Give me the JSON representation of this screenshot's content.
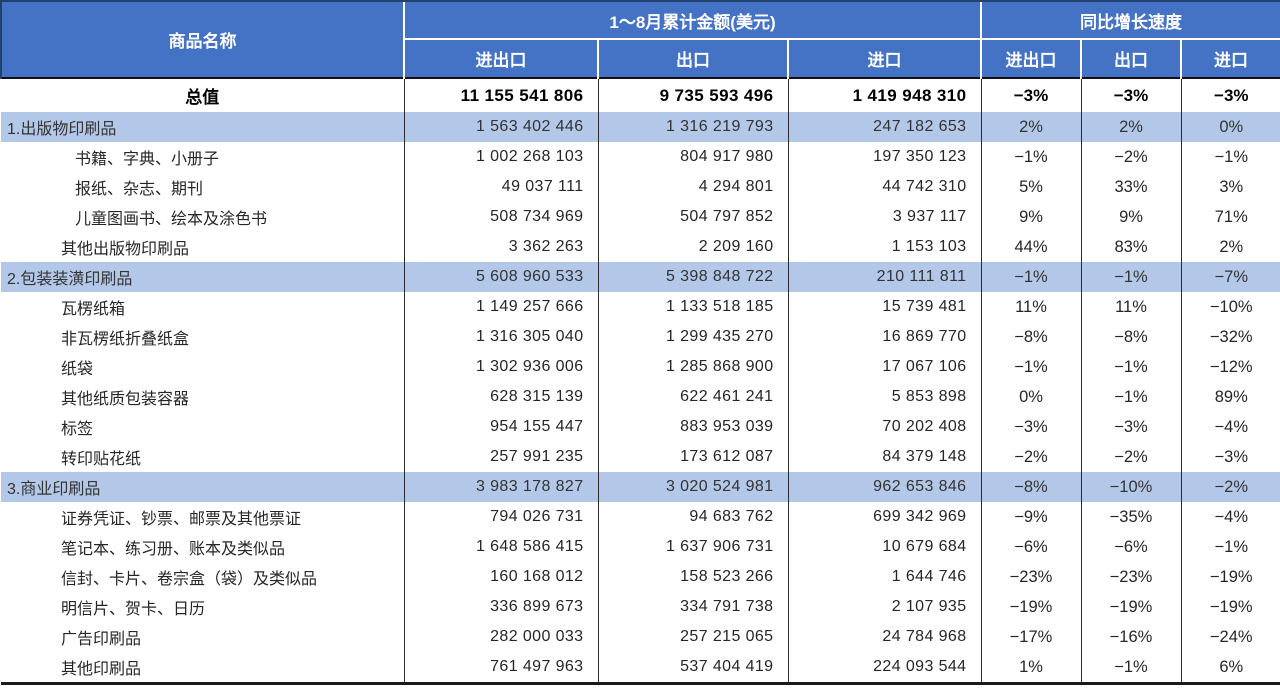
{
  "header": {
    "product_col": "商品名称",
    "amount_group": "1～8月累计金额(美元)",
    "growth_group": "同比增长速度",
    "sub_cols": [
      "进出口",
      "出口",
      "进口",
      "进出口",
      "出口",
      "进口"
    ]
  },
  "colors": {
    "header_bg": "#4472c4",
    "section_band_bg": "#b3c8e8"
  },
  "rows": [
    {
      "name": "总值",
      "level": "total",
      "values": [
        "11 155 541 806",
        "9 735 593 496",
        "1 419 948 310",
        "−3%",
        "−3%",
        "−3%"
      ]
    },
    {
      "name": "1.出版物印刷品",
      "level": "section",
      "values": [
        "1 563 402 446",
        "1 316 219 793",
        "247 182 653",
        "2%",
        "2%",
        "0%"
      ]
    },
    {
      "name": "书籍、字典、小册子",
      "level": "subitem",
      "values": [
        "1 002 268 103",
        "804 917 980",
        "197 350 123",
        "−1%",
        "−2%",
        "−1%"
      ]
    },
    {
      "name": "报纸、杂志、期刊",
      "level": "subitem",
      "values": [
        "49 037 111",
        "4 294 801",
        "44 742 310",
        "5%",
        "33%",
        "3%"
      ]
    },
    {
      "name": "儿童图画书、绘本及涂色书",
      "level": "subitem",
      "values": [
        "508 734 969",
        "504 797 852",
        "3 937 117",
        "9%",
        "9%",
        "71%"
      ]
    },
    {
      "name": "其他出版物印刷品",
      "level": "item",
      "values": [
        "3 362 263",
        "2 209 160",
        "1 153 103",
        "44%",
        "83%",
        "2%"
      ]
    },
    {
      "name": "2.包装装潢印刷品",
      "level": "section",
      "values": [
        "5 608 960 533",
        "5 398 848 722",
        "210 111 811",
        "−1%",
        "−1%",
        "−7%"
      ]
    },
    {
      "name": "瓦楞纸箱",
      "level": "item",
      "values": [
        "1 149 257 666",
        "1 133 518 185",
        "15 739 481",
        "11%",
        "11%",
        "−10%"
      ]
    },
    {
      "name": "非瓦楞纸折叠纸盒",
      "level": "item",
      "values": [
        "1 316 305 040",
        "1 299 435 270",
        "16 869 770",
        "−8%",
        "−8%",
        "−32%"
      ]
    },
    {
      "name": "纸袋",
      "level": "item",
      "values": [
        "1 302 936 006",
        "1 285 868 900",
        "17 067 106",
        "−1%",
        "−1%",
        "−12%"
      ]
    },
    {
      "name": "其他纸质包装容器",
      "level": "item",
      "values": [
        "628 315 139",
        "622 461 241",
        "5 853 898",
        "0%",
        "−1%",
        "89%"
      ]
    },
    {
      "name": "标签",
      "level": "item",
      "values": [
        "954 155 447",
        "883 953 039",
        "70 202 408",
        "−3%",
        "−3%",
        "−4%"
      ]
    },
    {
      "name": "转印贴花纸",
      "level": "item",
      "values": [
        "257 991 235",
        "173 612 087",
        "84 379 148",
        "−2%",
        "−2%",
        "−3%"
      ]
    },
    {
      "name": "3.商业印刷品",
      "level": "section",
      "values": [
        "3 983 178 827",
        "3 020 524 981",
        "962 653 846",
        "−8%",
        "−10%",
        "−2%"
      ]
    },
    {
      "name": "证券凭证、钞票、邮票及其他票证",
      "level": "item",
      "values": [
        "794 026 731",
        "94 683 762",
        "699 342 969",
        "−9%",
        "−35%",
        "−4%"
      ]
    },
    {
      "name": "笔记本、练习册、账本及类似品",
      "level": "item",
      "values": [
        "1 648 586 415",
        "1 637 906 731",
        "10 679 684",
        "−6%",
        "−6%",
        "−1%"
      ]
    },
    {
      "name": "信封、卡片、卷宗盒（袋）及类似品",
      "level": "item",
      "values": [
        "160 168 012",
        "158 523 266",
        "1 644 746",
        "−23%",
        "−23%",
        "−19%"
      ]
    },
    {
      "name": "明信片、贺卡、日历",
      "level": "item",
      "values": [
        "336 899 673",
        "334 791 738",
        "2 107 935",
        "−19%",
        "−19%",
        "−19%"
      ]
    },
    {
      "name": "广告印刷品",
      "level": "item",
      "values": [
        "282 000 033",
        "257 215 065",
        "24 784 968",
        "−17%",
        "−16%",
        "−24%"
      ]
    },
    {
      "name": "其他印刷品",
      "level": "item",
      "values": [
        "761 497 963",
        "537 404 419",
        "224 093 544",
        "1%",
        "−1%",
        "6%"
      ]
    }
  ]
}
